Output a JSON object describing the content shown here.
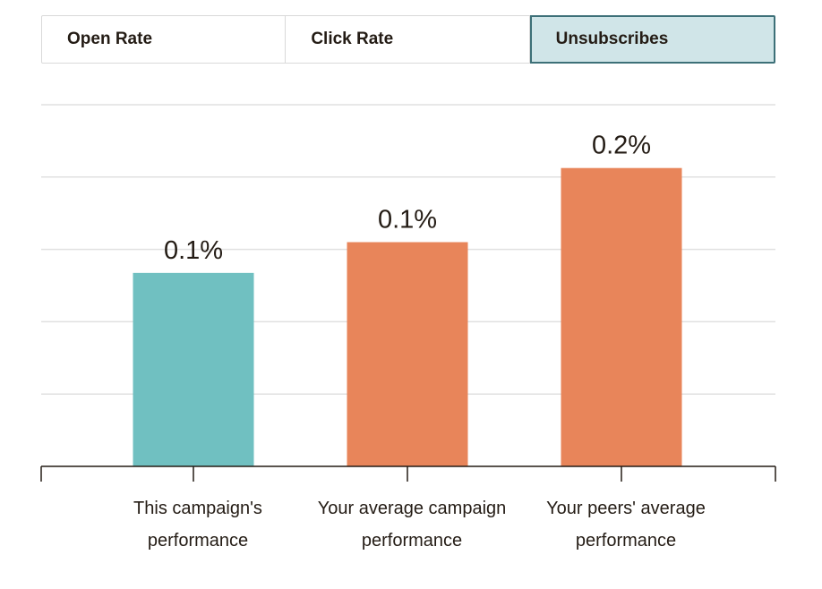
{
  "tabs": [
    {
      "label": "Open Rate",
      "active": false
    },
    {
      "label": "Click Rate",
      "active": false
    },
    {
      "label": "Unsubscribes",
      "active": true
    }
  ],
  "chart_data": {
    "type": "bar",
    "categories": [
      [
        "This campaign's",
        "performance"
      ],
      [
        "Your average campaign",
        "performance"
      ],
      [
        "Your peers' average",
        "performance"
      ]
    ],
    "values": [
      0.107,
      0.124,
      0.165
    ],
    "data_labels": [
      "0.1%",
      "0.1%",
      "0.2%"
    ],
    "colors": [
      "#70c0c1",
      "#e8855a",
      "#e8855a"
    ],
    "ylim": [
      0,
      0.2
    ],
    "grid": true
  }
}
